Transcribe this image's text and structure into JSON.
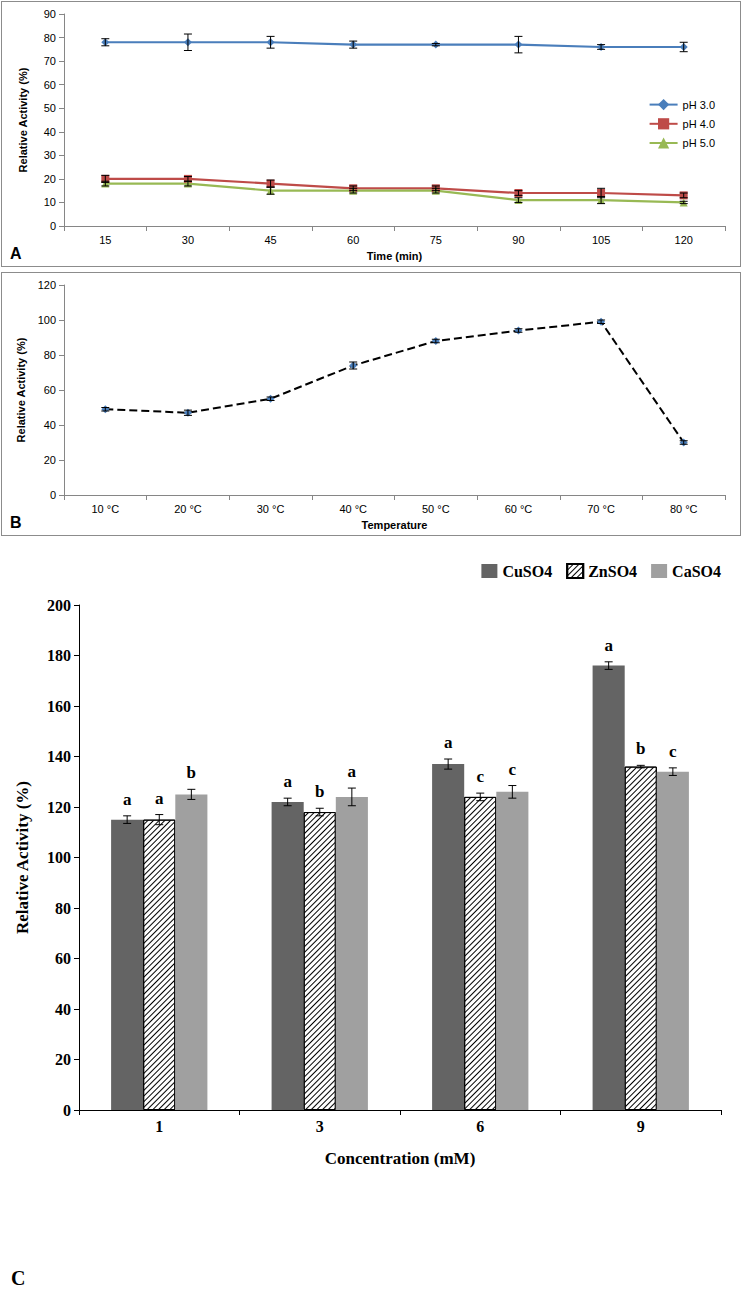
{
  "chart_data": [
    {
      "panel": "A",
      "type": "line",
      "xlabel": "Time (min)",
      "ylabel": "Relative Activity (%)",
      "categories": [
        15,
        30,
        45,
        60,
        75,
        90,
        105,
        120
      ],
      "series": [
        {
          "name": "pH 3.0",
          "color": "#4a7ebb",
          "marker": "diamond",
          "line_style": "solid",
          "values": [
            78,
            78,
            78,
            77,
            77,
            77,
            76,
            76
          ],
          "errors": [
            1.5,
            3.5,
            2.5,
            1.5,
            0.5,
            3.5,
            1,
            2
          ]
        },
        {
          "name": "pH 4.0",
          "color": "#be4b48",
          "marker": "square",
          "line_style": "solid",
          "values": [
            20,
            20,
            18,
            16,
            16,
            14,
            14,
            13
          ],
          "errors": [
            1.5,
            1,
            1.5,
            1,
            1,
            1,
            2,
            1
          ]
        },
        {
          "name": "pH 5.0",
          "color": "#98b954",
          "marker": "triangle",
          "line_style": "solid",
          "values": [
            18,
            18,
            15,
            15,
            15,
            11,
            11,
            10
          ],
          "errors": [
            1,
            1,
            1.5,
            1,
            1,
            1,
            1.5,
            0.5
          ]
        }
      ],
      "ylim": [
        0,
        90
      ],
      "yticks": [
        0,
        10,
        20,
        30,
        40,
        50,
        60,
        70,
        80,
        90
      ],
      "grid": false,
      "legend": "right"
    },
    {
      "panel": "B",
      "type": "line",
      "xlabel": "Temperature",
      "ylabel": "Relative Activity (%)",
      "categories": [
        "10 °C",
        "20 °C",
        "30 °C",
        "40 °C",
        "50 °C",
        "60 °C",
        "70 °C",
        "80 °C"
      ],
      "series": [
        {
          "color": "#4a7ebb",
          "marker": "diamond",
          "line_style": "dashed",
          "values": [
            49,
            47,
            55,
            74,
            88,
            94,
            99,
            30
          ],
          "errors": [
            1,
            1.5,
            1,
            2,
            1,
            1,
            1,
            1
          ]
        }
      ],
      "ylim": [
        0,
        120
      ],
      "yticks": [
        0,
        20,
        40,
        60,
        80,
        100,
        120
      ],
      "grid": false
    },
    {
      "panel": "C",
      "type": "bar",
      "xlabel": "Concentration (mM)",
      "ylabel": "Relative Activity (%)",
      "categories": [
        1,
        3,
        6,
        9
      ],
      "series": [
        {
          "name": "CuSO4",
          "color": "#646464",
          "values": [
            115,
            122,
            137,
            176
          ],
          "errors": [
            1.5,
            1.5,
            2,
            1.5
          ],
          "letters": [
            "a",
            "a",
            "a",
            "a"
          ]
        },
        {
          "name": "ZnSO4",
          "color": "#ffffff",
          "marker": "hatch",
          "values": [
            115,
            118,
            124,
            136
          ],
          "errors": [
            2,
            1.5,
            1.5,
            0.5
          ],
          "letters": [
            "a",
            "b",
            "c",
            "b"
          ]
        },
        {
          "name": "CaSO4",
          "color": "#a0a0a0",
          "values": [
            125,
            124,
            126,
            134
          ],
          "errors": [
            2,
            3.5,
            2.5,
            1.5
          ],
          "letters": [
            "b",
            "a",
            "c",
            "c"
          ]
        }
      ],
      "ylim": [
        0,
        200
      ],
      "yticks": [
        0,
        20,
        40,
        60,
        80,
        100,
        120,
        140,
        160,
        180,
        200
      ],
      "grid": false,
      "legend": "top-right"
    }
  ]
}
